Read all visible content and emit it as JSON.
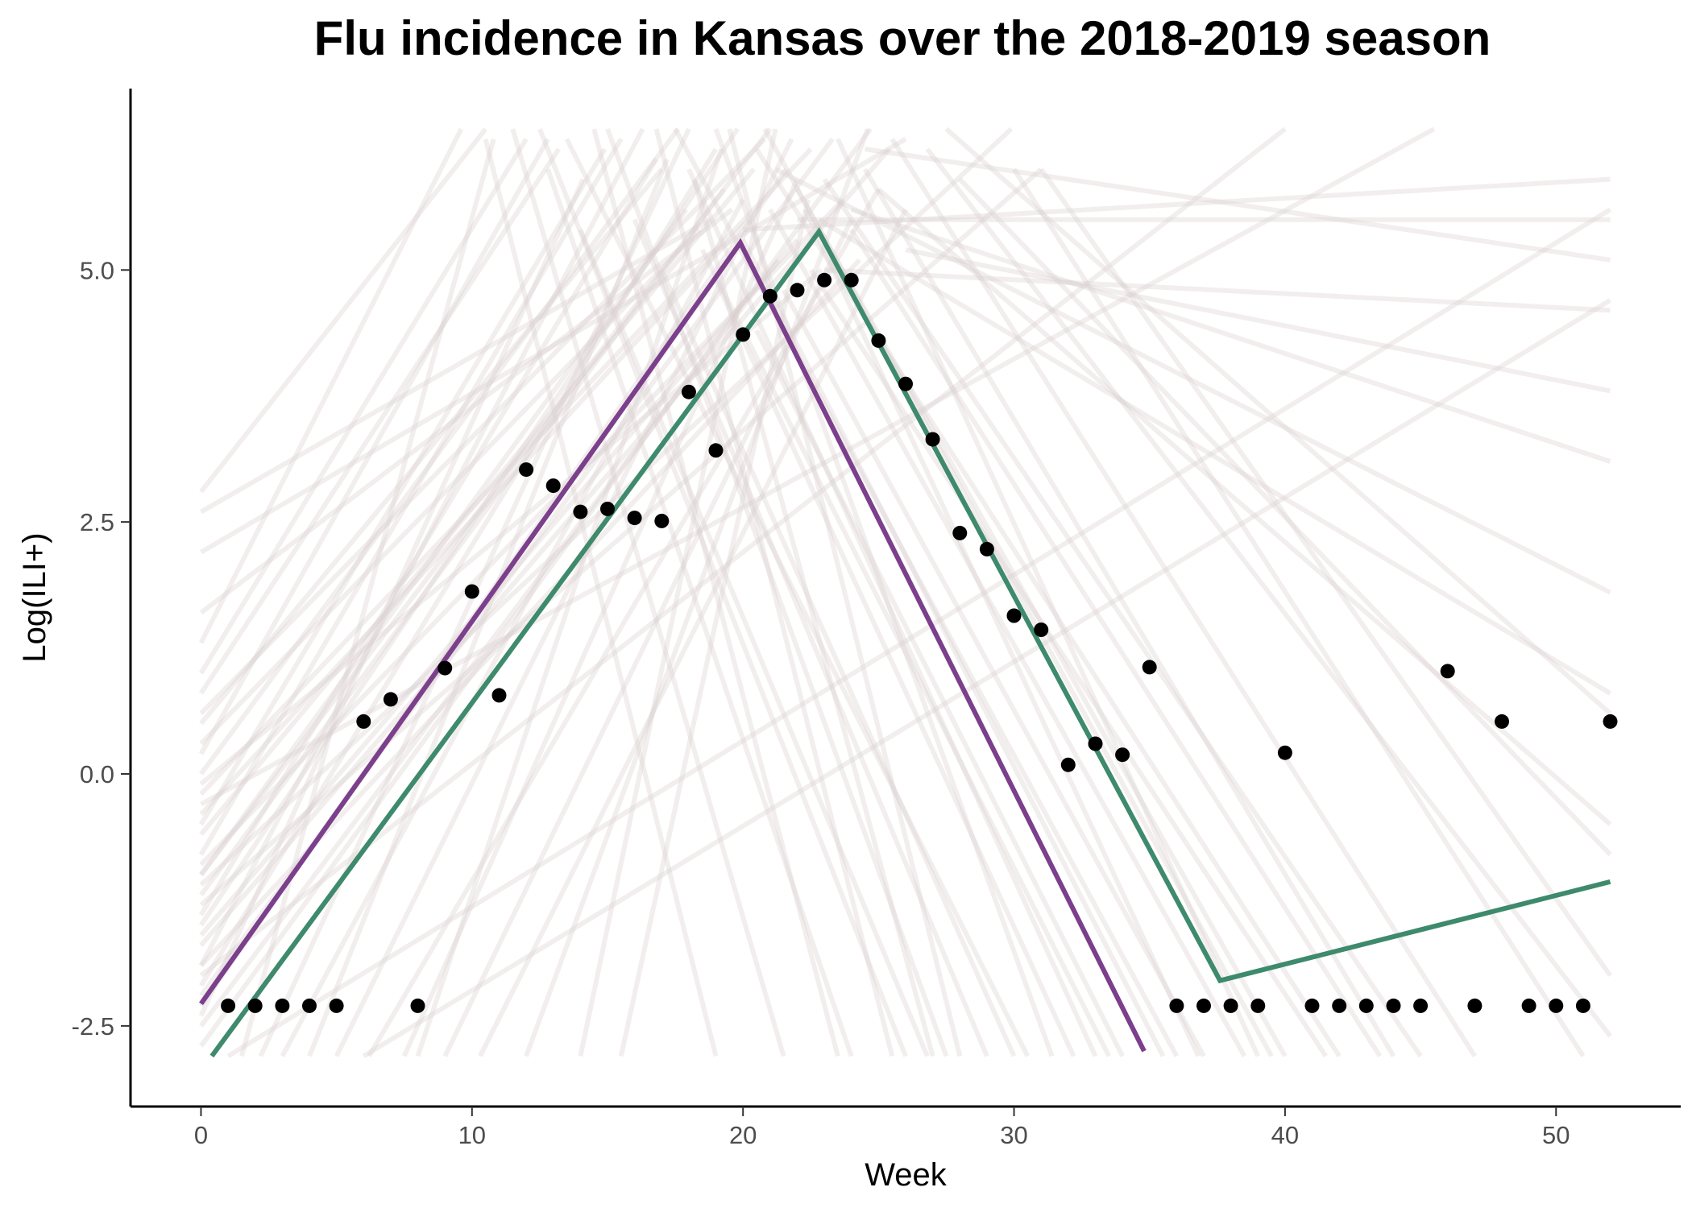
{
  "chart_data": {
    "type": "line",
    "title": "Flu incidence in Kansas over the 2018-2019 season",
    "xlabel": "Week",
    "ylabel": "Log(ILI+)",
    "xlim": [
      -2.6,
      54.6
    ],
    "ylim": [
      -3.3,
      6.8
    ],
    "x_ticks": [
      0,
      10,
      20,
      30,
      40,
      50
    ],
    "x_tick_labels": [
      "0",
      "10",
      "20",
      "30",
      "40",
      "50"
    ],
    "y_ticks": [
      -2.5,
      0,
      2.5,
      5
    ],
    "y_tick_labels": [
      "-2.5",
      "0.0",
      "2.5",
      "5.0"
    ],
    "grid": false,
    "colors": {
      "observed": "#000000",
      "purple_fit": "#7b3f8c",
      "green_fit": "#3e8a6c",
      "posterior_samples": "#d9cfcf"
    },
    "series": [
      {
        "kind": "points",
        "x": [
          1,
          2,
          3,
          4,
          5,
          6,
          7,
          8,
          9,
          10,
          11,
          12,
          13,
          14,
          15,
          16,
          17,
          18,
          19,
          20,
          21,
          22,
          23,
          24,
          25,
          26,
          27,
          28,
          29,
          30,
          31,
          32,
          33,
          34,
          35,
          36,
          37,
          38,
          39,
          40,
          41,
          42,
          43,
          44,
          45,
          46,
          47,
          48,
          49,
          50,
          51,
          52
        ],
        "y": [
          -2.3,
          -2.3,
          -2.3,
          -2.3,
          -2.3,
          0.52,
          0.74,
          -2.3,
          1.05,
          1.81,
          0.78,
          3.02,
          2.86,
          2.6,
          2.63,
          2.54,
          2.51,
          3.79,
          3.21,
          4.36,
          4.74,
          4.8,
          4.9,
          4.9,
          4.3,
          3.87,
          3.32,
          2.39,
          2.23,
          1.57,
          1.43,
          0.09,
          0.3,
          0.19,
          1.06,
          -2.3,
          -2.3,
          -2.3,
          -2.3,
          0.21,
          -2.3,
          -2.3,
          -2.3,
          -2.3,
          -2.3,
          1.02,
          -2.3,
          0.52,
          -2.3,
          -2.3,
          -2.3,
          0.52
        ]
      },
      {
        "kind": "line",
        "x": [
          0,
          19.9,
          34.8
        ],
        "y": [
          -2.28,
          5.27,
          -2.75
        ]
      },
      {
        "kind": "line",
        "x": [
          0.4,
          22.8,
          37.6,
          52
        ],
        "y": [
          -2.8,
          5.38,
          -2.05,
          -1.07
        ]
      }
    ],
    "posterior_lines": [
      {
        "x": [
          0,
          15.5
        ],
        "y": [
          -0.8,
          6.3
        ]
      },
      {
        "x": [
          0,
          19.8
        ],
        "y": [
          -1.5,
          6.4
        ]
      },
      {
        "x": [
          0,
          21.0
        ],
        "y": [
          -1.0,
          6.4
        ]
      },
      {
        "x": [
          0,
          17.6
        ],
        "y": [
          0.0,
          6.4
        ]
      },
      {
        "x": [
          0,
          13.2
        ],
        "y": [
          0.8,
          6.2
        ]
      },
      {
        "x": [
          0,
          9.6
        ],
        "y": [
          1.3,
          6.4
        ]
      },
      {
        "x": [
          0,
          24.7
        ],
        "y": [
          -2.7,
          6.4
        ]
      },
      {
        "x": [
          0,
          22.5
        ],
        "y": [
          -0.2,
          6.2
        ]
      },
      {
        "x": [
          0,
          16.3
        ],
        "y": [
          -1.9,
          6.4
        ]
      },
      {
        "x": [
          0,
          18.8
        ],
        "y": [
          2.6,
          5.5
        ]
      },
      {
        "x": [
          0,
          23.3
        ],
        "y": [
          -2.2,
          6.3
        ]
      },
      {
        "x": [
          0,
          10.5
        ],
        "y": [
          2.8,
          6.4
        ]
      },
      {
        "x": [
          0,
          12.8
        ],
        "y": [
          0.2,
          6.3
        ]
      },
      {
        "x": [
          0,
          20.4
        ],
        "y": [
          -0.6,
          6.0
        ]
      },
      {
        "x": [
          0,
          19.3
        ],
        "y": [
          -1.2,
          5.8
        ]
      },
      {
        "x": [
          0,
          14.1
        ],
        "y": [
          -2.4,
          5.9
        ]
      },
      {
        "x": [
          0,
          25.4
        ],
        "y": [
          -1.7,
          6.2
        ]
      },
      {
        "x": [
          0,
          17.0
        ],
        "y": [
          0.5,
          6.0
        ]
      },
      {
        "x": [
          3.0,
          20.0
        ],
        "y": [
          -2.8,
          5.7
        ]
      },
      {
        "x": [
          5.0,
          21.8
        ],
        "y": [
          -2.8,
          6.3
        ]
      },
      {
        "x": [
          7.5,
          22.0
        ],
        "y": [
          -2.8,
          5.9
        ]
      },
      {
        "x": [
          9.0,
          24.0
        ],
        "y": [
          -2.8,
          5.5
        ]
      },
      {
        "x": [
          8.0,
          19.2
        ],
        "y": [
          -2.8,
          6.2
        ]
      },
      {
        "x": [
          4.0,
          17.2
        ],
        "y": [
          -2.8,
          6.1
        ]
      },
      {
        "x": [
          12.0,
          24.6
        ],
        "y": [
          -2.8,
          6.4
        ]
      },
      {
        "x": [
          15.5,
          22.4
        ],
        "y": [
          -2.8,
          5.7
        ]
      },
      {
        "x": [
          1.5,
          10.8
        ],
        "y": [
          -2.8,
          6.3
        ]
      },
      {
        "x": [
          6.2,
          25.0
        ],
        "y": [
          -2.8,
          5.8
        ]
      },
      {
        "x": [
          10.3,
          26.0
        ],
        "y": [
          -2.8,
          5.6
        ]
      },
      {
        "x": [
          2.2,
          18.0
        ],
        "y": [
          -2.8,
          6.4
        ]
      },
      {
        "x": [
          14.0,
          21.2
        ],
        "y": [
          -2.8,
          6.4
        ]
      },
      {
        "x": [
          0,
          31.0
        ],
        "y": [
          -1.3,
          6.0
        ]
      },
      {
        "x": [
          0,
          40.0
        ],
        "y": [
          -2.0,
          6.4
        ]
      },
      {
        "x": [
          0,
          45.5
        ],
        "y": [
          -0.3,
          6.4
        ]
      },
      {
        "x": [
          0,
          29.9
        ],
        "y": [
          -1.1,
          6.4
        ]
      },
      {
        "x": [
          1.0,
          52.0
        ],
        "y": [
          -2.8,
          5.6
        ]
      },
      {
        "x": [
          6.0,
          52.0
        ],
        "y": [
          -2.8,
          4.7
        ]
      },
      {
        "x": [
          20.0,
          35.5
        ],
        "y": [
          5.3,
          -2.8
        ]
      },
      {
        "x": [
          21.0,
          38.5
        ],
        "y": [
          5.6,
          -2.8
        ]
      },
      {
        "x": [
          18.0,
          33.0
        ],
        "y": [
          6.0,
          -2.8
        ]
      },
      {
        "x": [
          22.0,
          40.0
        ],
        "y": [
          5.8,
          -2.8
        ]
      },
      {
        "x": [
          23.5,
          39.0
        ],
        "y": [
          6.3,
          -2.8
        ]
      },
      {
        "x": [
          19.0,
          31.4
        ],
        "y": [
          6.4,
          -2.8
        ]
      },
      {
        "x": [
          16.0,
          29.0
        ],
        "y": [
          5.5,
          -2.8
        ]
      },
      {
        "x": [
          14.0,
          26.8
        ],
        "y": [
          5.4,
          -2.8
        ]
      },
      {
        "x": [
          12.8,
          24.0
        ],
        "y": [
          6.0,
          -2.8
        ]
      },
      {
        "x": [
          10.5,
          19.0
        ],
        "y": [
          6.3,
          -2.8
        ]
      },
      {
        "x": [
          22.5,
          41.5
        ],
        "y": [
          5.0,
          -2.8
        ]
      },
      {
        "x": [
          24.0,
          43.5
        ],
        "y": [
          5.4,
          -2.8
        ]
      },
      {
        "x": [
          25.5,
          47.0
        ],
        "y": [
          6.3,
          -2.8
        ]
      },
      {
        "x": [
          26.8,
          52.0
        ],
        "y": [
          6.2,
          -2.6
        ]
      },
      {
        "x": [
          30.0,
          51.0
        ],
        "y": [
          6.0,
          -2.8
        ]
      },
      {
        "x": [
          17.5,
          36.0
        ],
        "y": [
          6.4,
          -2.8
        ]
      },
      {
        "x": [
          20.5,
          42.0
        ],
        "y": [
          6.2,
          -2.8
        ]
      },
      {
        "x": [
          15.0,
          27.5
        ],
        "y": [
          6.4,
          -2.8
        ]
      },
      {
        "x": [
          13.5,
          30.5
        ],
        "y": [
          6.3,
          -2.8
        ]
      },
      {
        "x": [
          11.5,
          21.5
        ],
        "y": [
          6.4,
          -2.8
        ]
      },
      {
        "x": [
          18.5,
          33.5
        ],
        "y": [
          5.2,
          -2.8
        ]
      },
      {
        "x": [
          21.5,
          37.0
        ],
        "y": [
          4.8,
          -2.8
        ]
      },
      {
        "x": [
          23.0,
          45.0
        ],
        "y": [
          5.9,
          -2.8
        ]
      },
      {
        "x": [
          19.5,
          28.0
        ],
        "y": [
          6.4,
          -2.8
        ]
      },
      {
        "x": [
          16.8,
          25.5
        ],
        "y": [
          6.4,
          -2.8
        ]
      },
      {
        "x": [
          22.8,
          52.0
        ],
        "y": [
          5.5,
          0.8
        ]
      },
      {
        "x": [
          25.0,
          52.0
        ],
        "y": [
          5.8,
          -0.5
        ]
      },
      {
        "x": [
          21.2,
          52.0
        ],
        "y": [
          6.0,
          1.8
        ]
      },
      {
        "x": [
          24.0,
          52.0
        ],
        "y": [
          5.6,
          3.1
        ]
      },
      {
        "x": [
          26.0,
          52.0
        ],
        "y": [
          5.2,
          3.8
        ]
      },
      {
        "x": [
          28.0,
          52.0
        ],
        "y": [
          5.9,
          -0.8
        ]
      },
      {
        "x": [
          20.0,
          52.0
        ],
        "y": [
          5.4,
          5.9
        ]
      },
      {
        "x": [
          22.0,
          52.0
        ],
        "y": [
          5.5,
          5.5
        ]
      },
      {
        "x": [
          24.5,
          52.0
        ],
        "y": [
          6.2,
          5.1
        ]
      },
      {
        "x": [
          23.0,
          52.0
        ],
        "y": [
          5.0,
          4.6
        ]
      },
      {
        "x": [
          27.5,
          52.0
        ],
        "y": [
          6.4,
          0.6
        ]
      },
      {
        "x": [
          31.0,
          52.0
        ],
        "y": [
          6.0,
          -2.0
        ]
      },
      {
        "x": [
          20.5,
          34.0
        ],
        "y": [
          4.4,
          -2.8
        ]
      },
      {
        "x": [
          19.0,
          32.2
        ],
        "y": [
          4.9,
          -2.8
        ]
      },
      {
        "x": [
          17.0,
          30.0
        ],
        "y": [
          5.0,
          -2.8
        ]
      },
      {
        "x": [
          22.3,
          36.8
        ],
        "y": [
          5.6,
          -2.8
        ]
      },
      {
        "x": [
          18.2,
          27.0
        ],
        "y": [
          5.9,
          -2.8
        ]
      },
      {
        "x": [
          20.8,
          39.5
        ],
        "y": [
          6.4,
          -2.8
        ]
      },
      {
        "x": [
          14.5,
          23.5
        ],
        "y": [
          6.4,
          -2.8
        ]
      },
      {
        "x": [
          12.5,
          26.0
        ],
        "y": [
          6.4,
          -2.8
        ]
      },
      {
        "x": [
          24.5,
          44.0
        ],
        "y": [
          6.0,
          -2.8
        ]
      },
      {
        "x": [
          0,
          19.0
        ],
        "y": [
          -2.1,
          6.2
        ]
      },
      {
        "x": [
          0,
          20.2
        ],
        "y": [
          -0.4,
          5.5
        ]
      },
      {
        "x": [
          0,
          22.0
        ],
        "y": [
          -1.6,
          5.3
        ]
      },
      {
        "x": [
          0,
          23.7
        ],
        "y": [
          -0.9,
          5.7
        ]
      },
      {
        "x": [
          0,
          18.4
        ],
        "y": [
          0.3,
          5.4
        ]
      },
      {
        "x": [
          0,
          21.6
        ],
        "y": [
          -2.3,
          6.0
        ]
      },
      {
        "x": [
          0,
          16.8
        ],
        "y": [
          -1.4,
          6.1
        ]
      },
      {
        "x": [
          0,
          14.9
        ],
        "y": [
          -0.5,
          6.2
        ]
      },
      {
        "x": [
          0,
          12.0
        ],
        "y": [
          1.0,
          6.3
        ]
      },
      {
        "x": [
          0,
          24.3
        ],
        "y": [
          -1.9,
          5.1
        ]
      },
      {
        "x": [
          0,
          26.0
        ],
        "y": [
          2.2,
          6.3
        ]
      },
      {
        "x": [
          0,
          20.8
        ],
        "y": [
          0.6,
          6.3
        ]
      },
      {
        "x": [
          0,
          17.9
        ],
        "y": [
          -1.0,
          5.6
        ]
      },
      {
        "x": [
          0,
          22.9
        ],
        "y": [
          -0.1,
          5.0
        ]
      },
      {
        "x": [
          0,
          21.3
        ],
        "y": [
          -2.5,
          5.1
        ]
      },
      {
        "x": [
          0,
          19.6
        ],
        "y": [
          1.6,
          5.6
        ]
      }
    ]
  }
}
